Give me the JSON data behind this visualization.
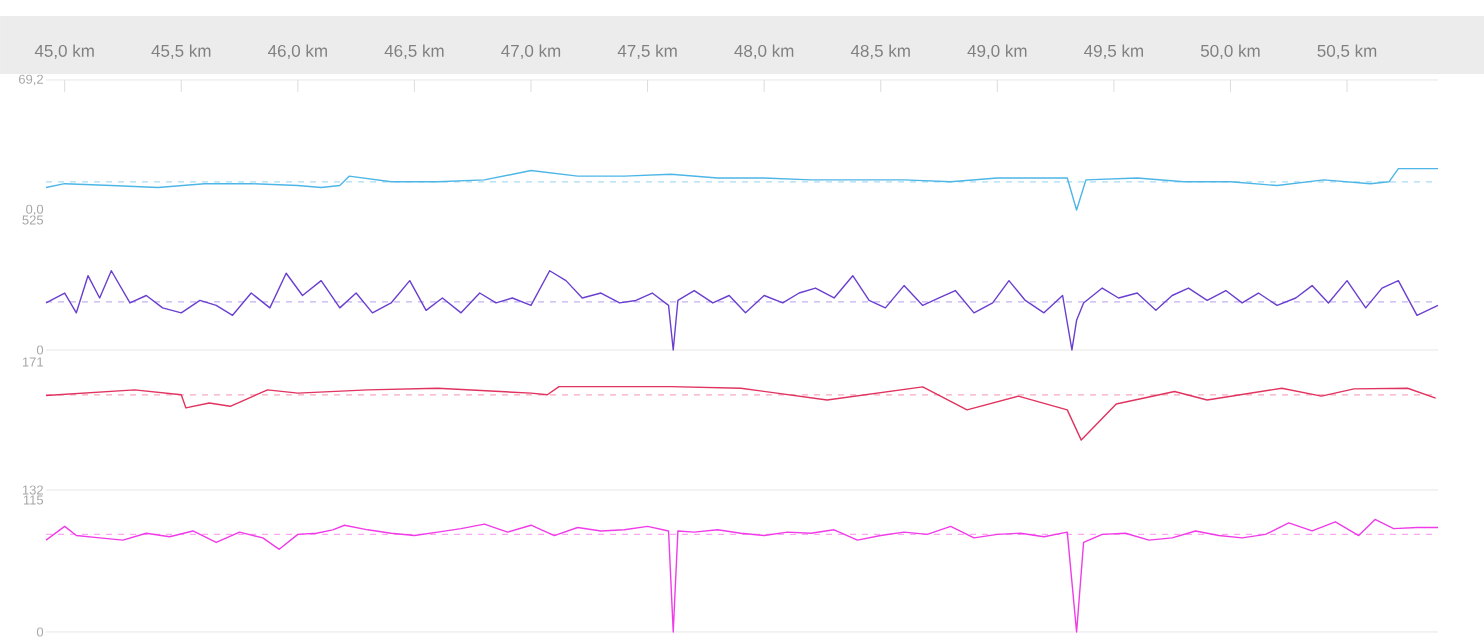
{
  "chart_data": [
    {
      "type": "line",
      "xlim": [
        44.92,
        50.89
      ],
      "xticks": [
        {
          "value": 45.0,
          "label": "45,0 km"
        },
        {
          "value": 45.5,
          "label": "45,5 km"
        },
        {
          "value": 46.0,
          "label": "46,0 km"
        },
        {
          "value": 46.5,
          "label": "46,5 km"
        },
        {
          "value": 47.0,
          "label": "47,0 km"
        },
        {
          "value": 47.5,
          "label": "47,5 km"
        },
        {
          "value": 48.0,
          "label": "48,0 km"
        },
        {
          "value": 48.5,
          "label": "48,5 km"
        },
        {
          "value": 49.0,
          "label": "49,0 km"
        },
        {
          "value": 49.5,
          "label": "49,5 km"
        },
        {
          "value": 50.0,
          "label": "50,0 km"
        },
        {
          "value": 50.5,
          "label": "50,5 km"
        }
      ],
      "ylim": [
        0,
        69.2
      ],
      "yticks": [
        {
          "value": 0,
          "label": "0,0"
        },
        {
          "value": 69.2,
          "label": "69,2"
        }
      ],
      "ref_lines": [
        {
          "axis": "y",
          "value": 15,
          "color": "#a9dcf3",
          "line_style": "dashed"
        }
      ],
      "series": [
        {
          "color": "#4db6e6",
          "x": [
            44.92,
            45.0,
            45.2,
            45.4,
            45.6,
            45.8,
            46.0,
            46.1,
            46.18,
            46.22,
            46.4,
            46.6,
            46.8,
            47.0,
            47.2,
            47.4,
            47.6,
            47.8,
            48.0,
            48.2,
            48.4,
            48.6,
            48.8,
            49.0,
            49.2,
            49.3,
            49.34,
            49.38,
            49.6,
            49.8,
            50.0,
            50.2,
            50.4,
            50.6,
            50.68,
            50.72,
            50.89
          ],
          "values": [
            12,
            14,
            13,
            12,
            14,
            14,
            13,
            12,
            13,
            18,
            15,
            15,
            16,
            21,
            18,
            18,
            19,
            17,
            17,
            16,
            16,
            16,
            15,
            17,
            17,
            17,
            0,
            16,
            17,
            15,
            15,
            13,
            16,
            14,
            15,
            22,
            22
          ]
        }
      ]
    },
    {
      "type": "line",
      "xlim": [
        44.92,
        50.89
      ],
      "tick_labels": "y",
      "ylim": [
        0,
        525
      ],
      "yticks": [
        {
          "value": 0,
          "label": "0"
        },
        {
          "value": 525,
          "label": "525"
        }
      ],
      "ref_lines": [
        {
          "axis": "y",
          "value": 194,
          "color": "#c3b2ee",
          "line_style": "dashed"
        }
      ],
      "series": [
        {
          "color": "#6a3fd0",
          "x": [
            44.92,
            45.0,
            45.05,
            45.1,
            45.15,
            45.2,
            45.28,
            45.35,
            45.42,
            45.5,
            45.58,
            45.65,
            45.72,
            45.8,
            45.88,
            45.95,
            46.02,
            46.1,
            46.18,
            46.25,
            46.32,
            46.4,
            46.48,
            46.55,
            46.62,
            46.7,
            46.78,
            46.85,
            46.92,
            47.0,
            47.08,
            47.15,
            47.22,
            47.3,
            47.38,
            47.45,
            47.52,
            47.59,
            47.61,
            47.63,
            47.7,
            47.78,
            47.85,
            47.92,
            48.0,
            48.08,
            48.15,
            48.22,
            48.3,
            48.38,
            48.45,
            48.52,
            48.6,
            48.68,
            48.75,
            48.82,
            48.9,
            48.98,
            49.05,
            49.12,
            49.2,
            49.28,
            49.32,
            49.34,
            49.37,
            49.45,
            49.52,
            49.6,
            49.68,
            49.75,
            49.82,
            49.9,
            49.98,
            50.05,
            50.12,
            50.2,
            50.28,
            50.35,
            50.42,
            50.5,
            50.58,
            50.65,
            50.72,
            50.8,
            50.89
          ],
          "values": [
            190,
            230,
            150,
            300,
            210,
            320,
            190,
            220,
            170,
            150,
            200,
            180,
            140,
            230,
            170,
            310,
            220,
            280,
            170,
            230,
            150,
            190,
            280,
            160,
            210,
            150,
            230,
            190,
            210,
            180,
            320,
            280,
            210,
            230,
            190,
            200,
            230,
            180,
            0,
            200,
            240,
            190,
            220,
            150,
            220,
            190,
            230,
            250,
            210,
            300,
            200,
            170,
            260,
            180,
            210,
            240,
            150,
            190,
            280,
            200,
            150,
            220,
            0,
            120,
            190,
            250,
            210,
            230,
            160,
            220,
            250,
            200,
            240,
            190,
            230,
            180,
            210,
            260,
            190,
            280,
            170,
            250,
            280,
            140,
            180
          ]
        }
      ]
    },
    {
      "type": "line",
      "xlim": [
        44.92,
        50.89
      ],
      "tick_labels": "y",
      "ylim": [
        132,
        171
      ],
      "yticks": [
        {
          "value": 132,
          "label": "132"
        },
        {
          "value": 171,
          "label": "171"
        }
      ],
      "ref_lines": [
        {
          "axis": "y",
          "value": 161,
          "color": "#f5a9bd",
          "line_style": "dashed"
        }
      ],
      "series": [
        {
          "color": "#e0335f",
          "x": [
            44.92,
            45.3,
            45.5,
            45.52,
            45.62,
            45.71,
            45.87,
            46.0,
            46.3,
            46.6,
            47.0,
            47.07,
            47.12,
            47.6,
            47.9,
            48.27,
            48.68,
            48.87,
            49.09,
            49.3,
            49.36,
            49.51,
            49.76,
            49.9,
            50.22,
            50.39,
            50.53,
            50.76,
            50.88
          ],
          "values": [
            160.8,
            162.5,
            161,
            157,
            158.5,
            157.5,
            162.5,
            161.5,
            162.5,
            163,
            161.5,
            161,
            163.5,
            163.5,
            163,
            159.4,
            163.4,
            156.4,
            160.6,
            156.4,
            147.2,
            158.2,
            162,
            159.4,
            163,
            160.6,
            162.8,
            163,
            160
          ]
        }
      ]
    },
    {
      "type": "line",
      "xlim": [
        44.92,
        50.89
      ],
      "tick_labels": "y",
      "ylim": [
        0,
        115
      ],
      "yticks": [
        {
          "value": 0,
          "label": "0"
        },
        {
          "value": 115,
          "label": "115"
        }
      ],
      "ref_lines": [
        {
          "axis": "y",
          "value": 85,
          "color": "#f7a8f0",
          "line_style": "dashed"
        }
      ],
      "series": [
        {
          "color": "#f03ce8",
          "x": [
            44.92,
            45.0,
            45.05,
            45.15,
            45.25,
            45.35,
            45.45,
            45.55,
            45.65,
            45.75,
            45.85,
            45.92,
            46.0,
            46.08,
            46.15,
            46.2,
            46.3,
            46.4,
            46.5,
            46.6,
            46.7,
            46.8,
            46.9,
            47.0,
            47.1,
            47.2,
            47.3,
            47.4,
            47.5,
            47.59,
            47.61,
            47.63,
            47.7,
            47.8,
            47.9,
            48.0,
            48.1,
            48.2,
            48.3,
            48.4,
            48.5,
            48.6,
            48.7,
            48.8,
            48.9,
            49.0,
            49.1,
            49.2,
            49.3,
            49.34,
            49.37,
            49.45,
            49.55,
            49.65,
            49.75,
            49.85,
            49.95,
            50.05,
            50.15,
            50.25,
            50.35,
            50.45,
            50.55,
            50.62,
            50.7,
            50.8,
            50.89
          ],
          "values": [
            80,
            92,
            84,
            82,
            80,
            86,
            83,
            88,
            78,
            87,
            82,
            72,
            85,
            86,
            89,
            93,
            89,
            86,
            84,
            87,
            90,
            94,
            87,
            93,
            84,
            91,
            88,
            89,
            92,
            88,
            0,
            88,
            87,
            89,
            86,
            84,
            87,
            86,
            89,
            80,
            84,
            87,
            85,
            92,
            82,
            85,
            86,
            83,
            87,
            0,
            78,
            85,
            86,
            80,
            82,
            88,
            84,
            82,
            85,
            95,
            88,
            96,
            84,
            98,
            90,
            91,
            91
          ]
        }
      ]
    }
  ]
}
